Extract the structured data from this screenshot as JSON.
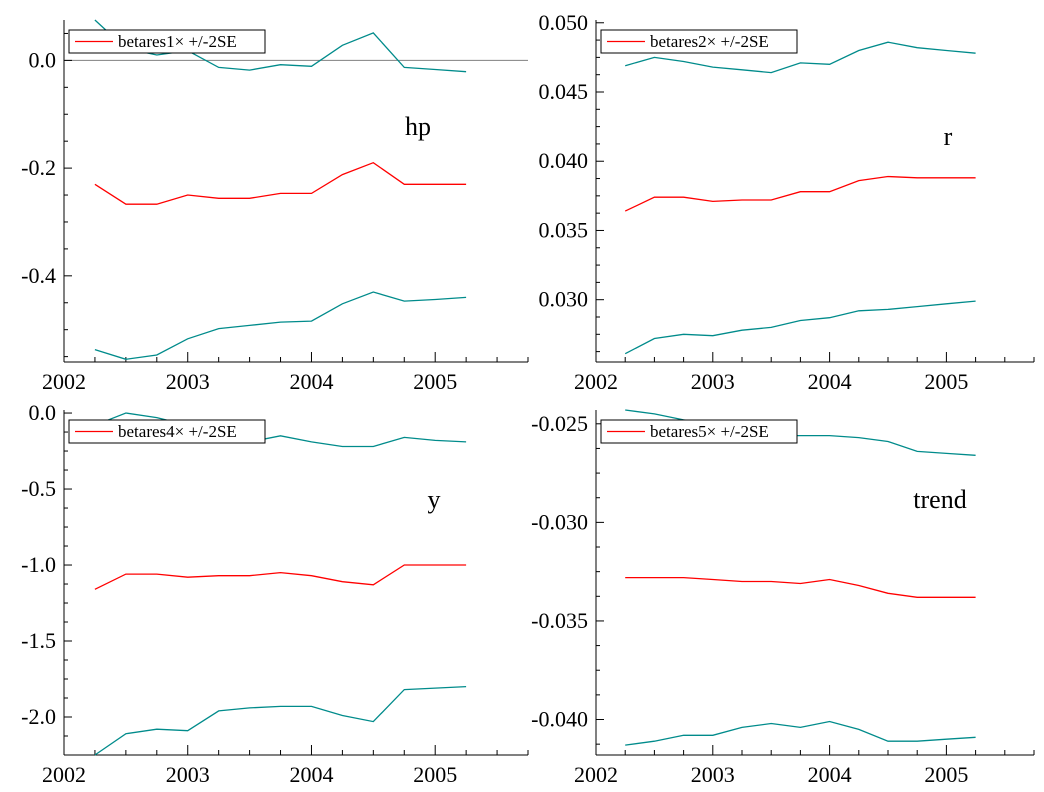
{
  "colors": {
    "estimate": "#ff0000",
    "band": "#008b8b",
    "axis": "#000000",
    "zero_line": "#808080"
  },
  "chart_data": [
    {
      "type": "line",
      "title": "hp",
      "legend": {
        "label": "betares1× +/-2SE",
        "placement": "top-left"
      },
      "xlim": [
        2002.0,
        2005.75
      ],
      "ylim": [
        -0.56,
        0.075
      ],
      "xticks": [
        2002,
        2003,
        2004,
        2005
      ],
      "yticks": [
        0.0,
        -0.2,
        -0.4
      ],
      "ytick_labels": [
        "0.0",
        "-0.2",
        "-0.4"
      ],
      "zero_line": true,
      "x": [
        2002.25,
        2002.5,
        2002.75,
        2003.0,
        2003.25,
        2003.5,
        2003.75,
        2004.0,
        2004.25,
        2004.5,
        2004.75,
        2005.0,
        2005.25
      ],
      "series": [
        {
          "role": "upper",
          "values": [
            0.075,
            0.022,
            0.01,
            0.018,
            -0.013,
            -0.018,
            -0.008,
            -0.011,
            0.028,
            0.051,
            -0.013,
            -0.017,
            -0.021
          ]
        },
        {
          "role": "estimate",
          "values": [
            -0.23,
            -0.267,
            -0.267,
            -0.25,
            -0.256,
            -0.256,
            -0.247,
            -0.247,
            -0.212,
            -0.19,
            -0.23,
            -0.23,
            -0.23
          ]
        },
        {
          "role": "lower",
          "values": [
            -0.537,
            -0.555,
            -0.547,
            -0.517,
            -0.498,
            -0.492,
            -0.486,
            -0.484,
            -0.452,
            -0.43,
            -0.447,
            -0.444,
            -0.44
          ]
        }
      ]
    },
    {
      "type": "line",
      "title": "r",
      "legend": {
        "label": "betares2× +/-2SE",
        "placement": "top-left"
      },
      "xlim": [
        2002.0,
        2005.75
      ],
      "ylim": [
        0.0255,
        0.0502
      ],
      "xticks": [
        2002,
        2003,
        2004,
        2005
      ],
      "yticks": [
        0.05,
        0.045,
        0.04,
        0.035,
        0.03
      ],
      "ytick_labels": [
        "0.050",
        "0.045",
        "0.040",
        "0.035",
        "0.030"
      ],
      "zero_line": false,
      "x": [
        2002.25,
        2002.5,
        2002.75,
        2003.0,
        2003.25,
        2003.5,
        2003.75,
        2004.0,
        2004.25,
        2004.5,
        2004.75,
        2005.0,
        2005.25
      ],
      "series": [
        {
          "role": "upper",
          "values": [
            0.0469,
            0.0475,
            0.0472,
            0.0468,
            0.0466,
            0.0464,
            0.0471,
            0.047,
            0.048,
            0.0486,
            0.0482,
            0.048,
            0.0478
          ]
        },
        {
          "role": "estimate",
          "values": [
            0.0364,
            0.0374,
            0.0374,
            0.0371,
            0.0372,
            0.0372,
            0.0378,
            0.0378,
            0.0386,
            0.0389,
            0.0388,
            0.0388,
            0.0388
          ]
        },
        {
          "role": "lower",
          "values": [
            0.0261,
            0.0272,
            0.0275,
            0.0274,
            0.0278,
            0.028,
            0.0285,
            0.0287,
            0.0292,
            0.0293,
            0.0295,
            0.0297,
            0.0299
          ]
        }
      ]
    },
    {
      "type": "line",
      "title": "y",
      "legend": {
        "label": "betares4× +/-2SE",
        "placement": "top-left"
      },
      "xlim": [
        2002.0,
        2005.75
      ],
      "ylim": [
        -2.25,
        0.02
      ],
      "xticks": [
        2002,
        2003,
        2004,
        2005
      ],
      "yticks": [
        0.0,
        -0.5,
        -1.0,
        -1.5,
        -2.0
      ],
      "ytick_labels": [
        "0.0",
        "-0.5",
        "-1.0",
        "-1.5",
        "-2.0"
      ],
      "zero_line": false,
      "x": [
        2002.25,
        2002.5,
        2002.75,
        2003.0,
        2003.25,
        2003.5,
        2003.75,
        2004.0,
        2004.25,
        2004.5,
        2004.75,
        2005.0,
        2005.25
      ],
      "series": [
        {
          "role": "upper",
          "values": [
            -0.08,
            0.0,
            -0.03,
            -0.08,
            -0.17,
            -0.19,
            -0.15,
            -0.19,
            -0.22,
            -0.22,
            -0.16,
            -0.18,
            -0.19
          ]
        },
        {
          "role": "estimate",
          "values": [
            -1.16,
            -1.06,
            -1.06,
            -1.08,
            -1.07,
            -1.07,
            -1.05,
            -1.07,
            -1.11,
            -1.13,
            -1.0,
            -1.0,
            -1.0
          ]
        },
        {
          "role": "lower",
          "values": [
            -2.25,
            -2.11,
            -2.08,
            -2.09,
            -1.96,
            -1.94,
            -1.93,
            -1.93,
            -1.99,
            -2.03,
            -1.82,
            -1.81,
            -1.8
          ]
        }
      ]
    },
    {
      "type": "line",
      "title": "trend",
      "legend": {
        "label": "betares5× +/-2SE",
        "placement": "top-left"
      },
      "xlim": [
        2002.0,
        2005.75
      ],
      "ylim": [
        -0.0418,
        -0.0243
      ],
      "xticks": [
        2002,
        2003,
        2004,
        2005
      ],
      "yticks": [
        -0.025,
        -0.03,
        -0.035,
        -0.04
      ],
      "ytick_labels": [
        "-0.025",
        "-0.030",
        "-0.035",
        "-0.040"
      ],
      "zero_line": false,
      "x": [
        2002.25,
        2002.5,
        2002.75,
        2003.0,
        2003.25,
        2003.5,
        2003.75,
        2004.0,
        2004.25,
        2004.5,
        2004.75,
        2005.0,
        2005.25
      ],
      "series": [
        {
          "role": "upper",
          "values": [
            -0.0243,
            -0.0245,
            -0.0248,
            -0.025,
            -0.0253,
            -0.0256,
            -0.0256,
            -0.0256,
            -0.0257,
            -0.0259,
            -0.0264,
            -0.0265,
            -0.0266
          ]
        },
        {
          "role": "estimate",
          "values": [
            -0.0328,
            -0.0328,
            -0.0328,
            -0.0329,
            -0.033,
            -0.033,
            -0.0331,
            -0.0329,
            -0.0332,
            -0.0336,
            -0.0338,
            -0.0338,
            -0.0338
          ]
        },
        {
          "role": "lower",
          "values": [
            -0.0413,
            -0.0411,
            -0.0408,
            -0.0408,
            -0.0404,
            -0.0402,
            -0.0404,
            -0.0401,
            -0.0405,
            -0.0411,
            -0.0411,
            -0.041,
            -0.0409
          ]
        }
      ]
    }
  ]
}
